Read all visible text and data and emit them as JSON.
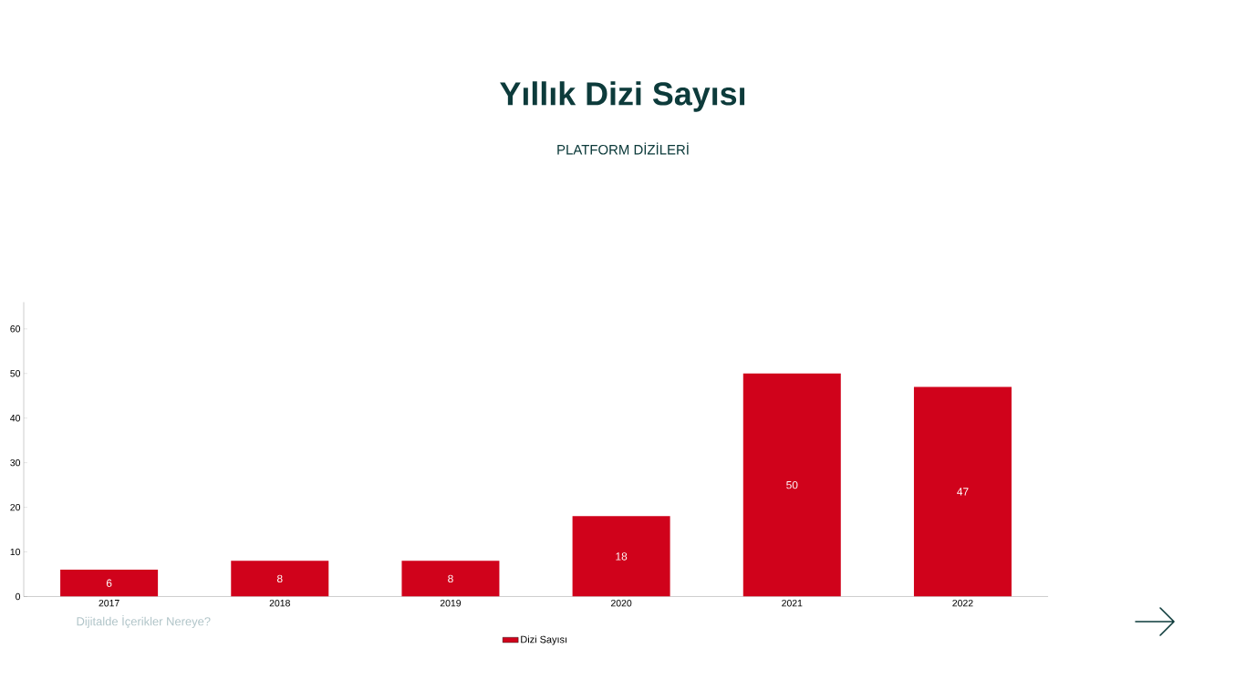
{
  "chart_data": {
    "type": "bar",
    "title": "Yıllık Dizi Sayısı",
    "subtitle": "PLATFORM DİZİLERİ",
    "categories": [
      "2017",
      "2018",
      "2019",
      "2020",
      "2021",
      "2022"
    ],
    "series": [
      {
        "name": "Dizi Sayısı",
        "color": "#d0021b",
        "values": [
          6,
          8,
          8,
          18,
          50,
          47
        ]
      }
    ],
    "ylim": [
      0,
      66
    ],
    "yticks": [
      0,
      10,
      20,
      30,
      40,
      50,
      60
    ],
    "data_labels": true,
    "legend": "bottom",
    "annotations": [
      "Dijitalde İçerikler Nereye?"
    ]
  }
}
